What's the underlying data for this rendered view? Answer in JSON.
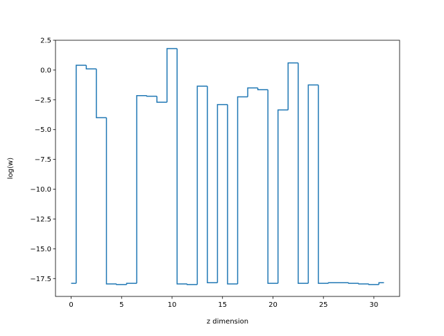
{
  "chart_data": {
    "type": "line",
    "drawstyle": "steps-mid",
    "title": "",
    "xlabel": "z dimension",
    "ylabel": "log(w)",
    "xlim": [
      -1.55,
      32.55
    ],
    "ylim": [
      -19.0,
      2.5
    ],
    "xticks": [
      0,
      5,
      10,
      15,
      20,
      25,
      30
    ],
    "xtick_labels": [
      "0",
      "5",
      "10",
      "15",
      "20",
      "25",
      "30"
    ],
    "yticks": [
      2.5,
      0.0,
      -2.5,
      -5.0,
      -7.5,
      -10.0,
      -12.5,
      -15.0,
      -17.5
    ],
    "ytick_labels": [
      "2.5",
      "0.0",
      "−2.5",
      "−5.0",
      "−7.5",
      "−10.0",
      "−12.5",
      "−15.0",
      "−17.5"
    ],
    "grid": false,
    "line_color": "#1f77b4",
    "series": [
      {
        "x": [
          0,
          1,
          2,
          3,
          4,
          5,
          6,
          7,
          8,
          9,
          10,
          11,
          12,
          13,
          14,
          15,
          16,
          17,
          18,
          19,
          20,
          21,
          22,
          23,
          24,
          25,
          26,
          27,
          28,
          29,
          30,
          31
        ],
        "values": [
          -17.9,
          0.4,
          0.1,
          -4.0,
          -17.95,
          -18.0,
          -17.9,
          -2.15,
          -2.2,
          -2.7,
          1.8,
          -17.95,
          -18.0,
          -1.35,
          -17.85,
          -2.9,
          -17.95,
          -2.25,
          -1.5,
          -1.65,
          -17.9,
          -3.35,
          0.6,
          -17.9,
          -1.25,
          -17.9,
          -17.85,
          -17.85,
          -17.9,
          -17.95,
          -18.0,
          -17.85
        ]
      }
    ]
  }
}
